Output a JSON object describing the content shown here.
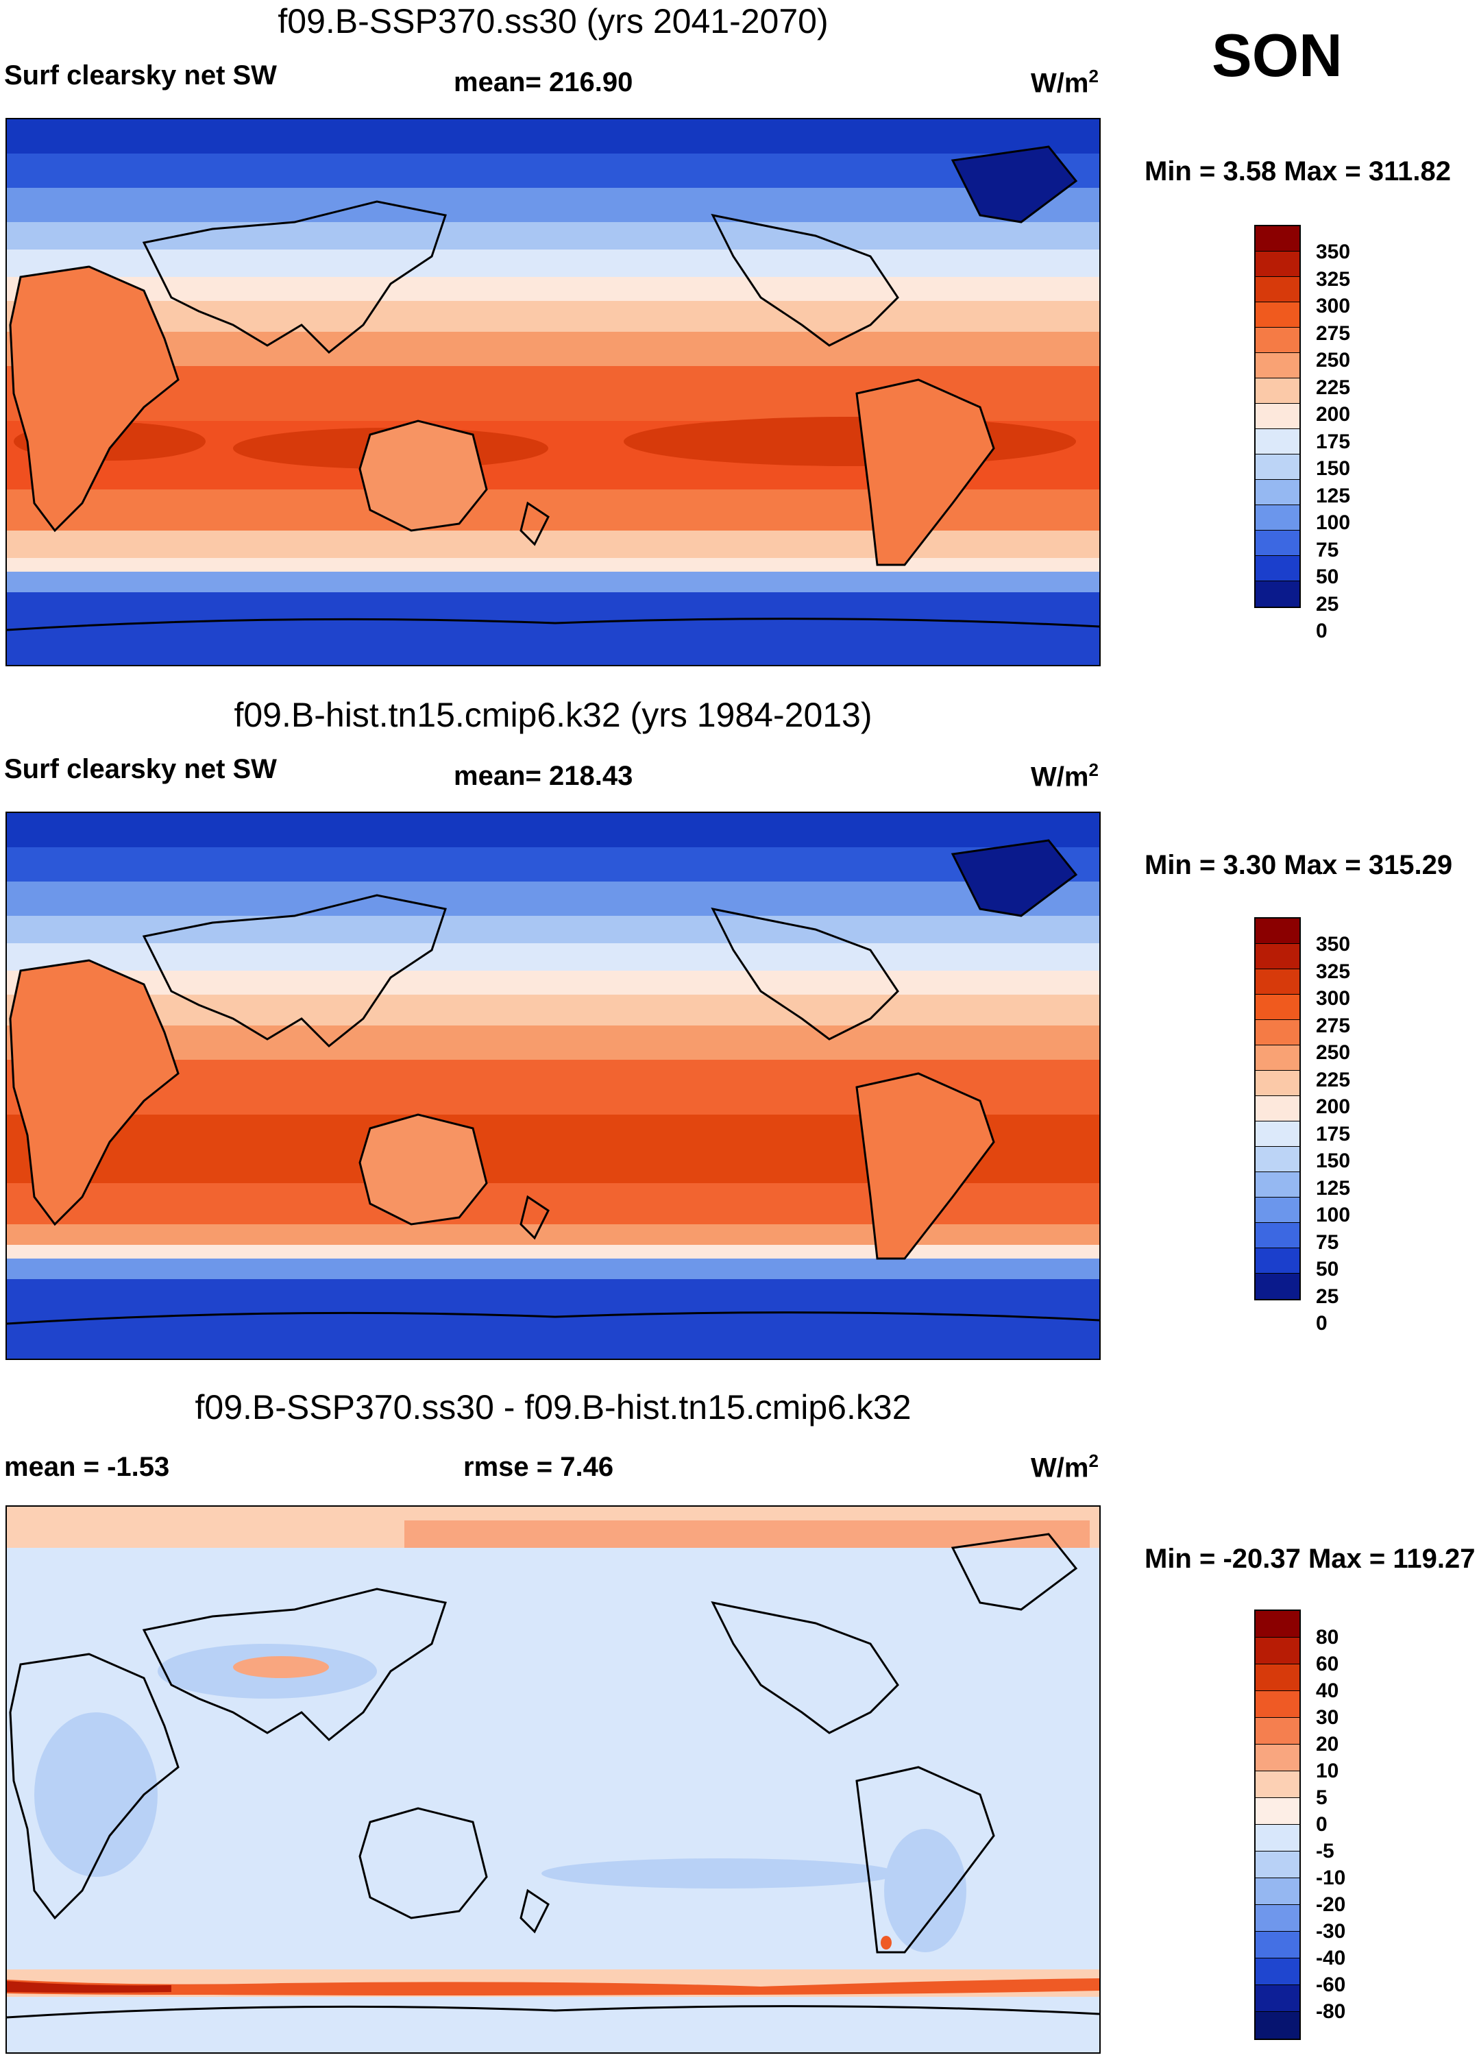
{
  "season": "SON",
  "panels": [
    {
      "id": "future",
      "title": "f09.B-SSP370.ss30 (yrs 2041-2070)",
      "variable": "Surf clearsky net SW",
      "stat": "mean= 216.90",
      "units": "W/m",
      "units_sup": "2",
      "minmax": "Min =   3.58 Max = 311.82",
      "colorbar_labels": [
        "350",
        "325",
        "300",
        "275",
        "250",
        "225",
        "200",
        "175",
        "150",
        "125",
        "100",
        "75",
        "50",
        "25",
        "0"
      ],
      "colorbar_colors": [
        "#8b0000",
        "#b81c05",
        "#d73a0b",
        "#f05a1e",
        "#f57b45",
        "#f9a274",
        "#fbc9a8",
        "#fde8dc",
        "#dce9fa",
        "#bcd4f6",
        "#95b8f2",
        "#6b96ec",
        "#3c68e2",
        "#1b3fcc",
        "#0a1a8c"
      ]
    },
    {
      "id": "historical",
      "title": "f09.B-hist.tn15.cmip6.k32 (yrs 1984-2013)",
      "variable": "Surf clearsky net SW",
      "stat": "mean= 218.43",
      "units": "W/m",
      "units_sup": "2",
      "minmax": "Min =   3.30 Max = 315.29",
      "colorbar_labels": [
        "350",
        "325",
        "300",
        "275",
        "250",
        "225",
        "200",
        "175",
        "150",
        "125",
        "100",
        "75",
        "50",
        "25",
        "0"
      ],
      "colorbar_colors": [
        "#8b0000",
        "#b81c05",
        "#d73a0b",
        "#f05a1e",
        "#f57b45",
        "#f9a274",
        "#fbc9a8",
        "#fde8dc",
        "#dce9fa",
        "#bcd4f6",
        "#95b8f2",
        "#6b96ec",
        "#3c68e2",
        "#1b3fcc",
        "#0a1a8c"
      ]
    },
    {
      "id": "difference",
      "title": "f09.B-SSP370.ss30 - f09.B-hist.tn15.cmip6.k32",
      "stat_left": "mean =  -1.53",
      "stat": "rmse =   7.46",
      "units": "W/m",
      "units_sup": "2",
      "minmax": "Min = -20.37 Max = 119.27",
      "colorbar_labels": [
        "80",
        "60",
        "40",
        "30",
        "20",
        "10",
        "5",
        "0",
        "-5",
        "-10",
        "-20",
        "-30",
        "-40",
        "-60",
        "-80"
      ],
      "colorbar_colors": [
        "#8b0000",
        "#b81c05",
        "#d73a0b",
        "#ef5a25",
        "#f57f4f",
        "#f9a67f",
        "#fcd0b4",
        "#fdeee6",
        "#d8e7fb",
        "#b8d1f6",
        "#95b7f1",
        "#6f97ec",
        "#4470e4",
        "#1f46cf",
        "#0d1f97",
        "#061470"
      ]
    }
  ]
}
